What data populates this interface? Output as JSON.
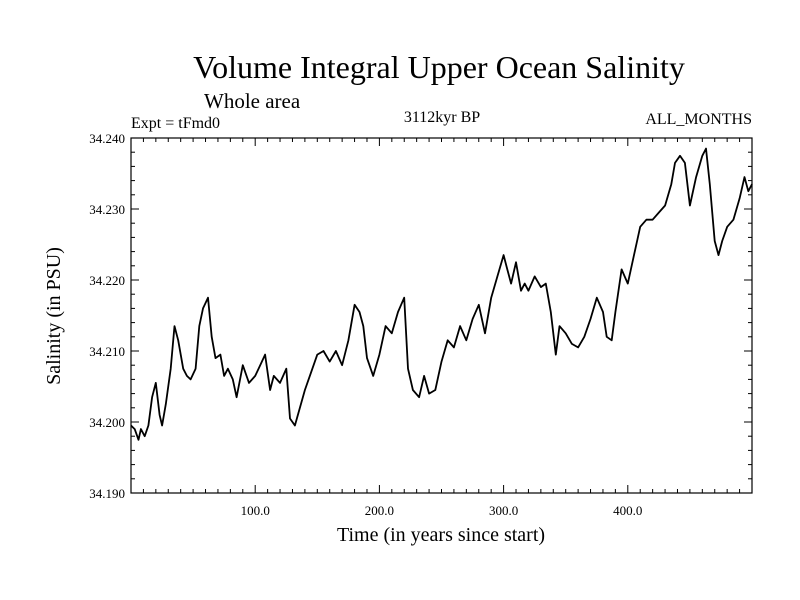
{
  "chart_data": {
    "type": "line",
    "title": "Volume Integral Upper Ocean Salinity",
    "subtitle": "Whole area",
    "left_label": "Expt = tFmd0",
    "center_label": "3112kyr BP",
    "right_label": "ALL_MONTHS",
    "xlabel": "Time (in years since start)",
    "ylabel": "Salinity (in PSU)",
    "xlim": [
      0,
      500
    ],
    "ylim": [
      34.19,
      34.24
    ],
    "x_ticks": [
      100,
      200,
      300,
      400
    ],
    "x_tick_labels": [
      "100.0",
      "200.0",
      "300.0",
      "400.0"
    ],
    "y_ticks": [
      34.19,
      34.2,
      34.21,
      34.22,
      34.23,
      34.24
    ],
    "y_tick_labels": [
      "34.190",
      "34.200",
      "34.210",
      "34.220",
      "34.230",
      "34.240"
    ],
    "series": [
      {
        "name": "salinity",
        "x": [
          0,
          3,
          6,
          8,
          11,
          14,
          17,
          20,
          23,
          25,
          28,
          32,
          35,
          38,
          42,
          45,
          48,
          52,
          55,
          58,
          62,
          65,
          68,
          72,
          75,
          78,
          82,
          85,
          90,
          95,
          100,
          104,
          108,
          112,
          115,
          120,
          125,
          128,
          132,
          136,
          140,
          145,
          150,
          155,
          160,
          165,
          170,
          175,
          180,
          184,
          187,
          190,
          195,
          200,
          205,
          210,
          215,
          220,
          223,
          227,
          232,
          236,
          240,
          245,
          250,
          255,
          260,
          265,
          270,
          275,
          280,
          285,
          290,
          295,
          300,
          303,
          306,
          310,
          314,
          317,
          320,
          325,
          330,
          334,
          338,
          342,
          345,
          350,
          355,
          360,
          365,
          370,
          375,
          380,
          383,
          387,
          390,
          395,
          400,
          405,
          410,
          415,
          420,
          425,
          430,
          435,
          438,
          442,
          446,
          450,
          455,
          460,
          463,
          466,
          470,
          473,
          476,
          480,
          485,
          490,
          494,
          497,
          500
        ],
        "y": [
          34.1995,
          34.199,
          34.1975,
          34.199,
          34.198,
          34.1995,
          34.2035,
          34.2055,
          34.201,
          34.1995,
          34.2025,
          34.2075,
          34.2135,
          34.2115,
          34.2075,
          34.2065,
          34.206,
          34.2075,
          34.2135,
          34.216,
          34.2175,
          34.212,
          34.209,
          34.2095,
          34.2065,
          34.2075,
          34.206,
          34.2035,
          34.208,
          34.2055,
          34.2065,
          34.208,
          34.2095,
          34.2045,
          34.2065,
          34.2055,
          34.2075,
          34.2005,
          34.1995,
          34.202,
          34.2045,
          34.207,
          34.2095,
          34.21,
          34.2085,
          34.21,
          34.208,
          34.2115,
          34.2165,
          34.2155,
          34.2135,
          34.209,
          34.2065,
          34.2095,
          34.2135,
          34.2125,
          34.2155,
          34.2175,
          34.2075,
          34.2045,
          34.2035,
          34.2065,
          34.204,
          34.2045,
          34.2085,
          34.2115,
          34.2105,
          34.2135,
          34.2115,
          34.2145,
          34.2165,
          34.2125,
          34.2175,
          34.2205,
          34.2235,
          34.2215,
          34.2195,
          34.2225,
          34.2185,
          34.2195,
          34.2185,
          34.2205,
          34.219,
          34.2195,
          34.2155,
          34.2095,
          34.2135,
          34.2125,
          34.211,
          34.2105,
          34.212,
          34.2145,
          34.2175,
          34.2155,
          34.212,
          34.2115,
          34.2155,
          34.2215,
          34.2195,
          34.2235,
          34.2275,
          34.2285,
          34.2285,
          34.2295,
          34.2305,
          34.2335,
          34.2365,
          34.2375,
          34.2365,
          34.2305,
          34.2345,
          34.2375,
          34.2385,
          34.2335,
          34.2255,
          34.2235,
          34.2255,
          34.2275,
          34.2285,
          34.2315,
          34.2345,
          34.2325,
          34.2335
        ]
      }
    ]
  }
}
